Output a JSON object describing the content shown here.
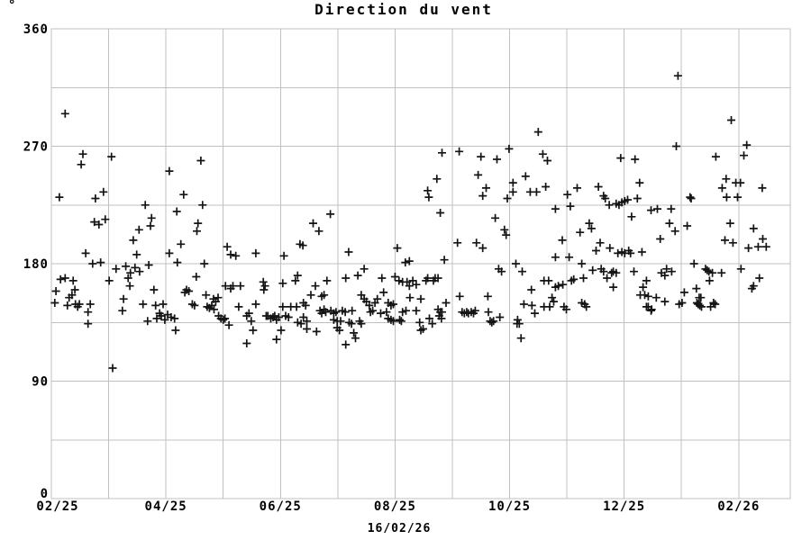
{
  "page": {
    "background": "#ffffff"
  },
  "chart_data": {
    "type": "scatter",
    "title": "Direction du vent",
    "y_unit": "°",
    "xlabel": "16/02/26",
    "marker": "plus-cross",
    "marker_color": "#141414",
    "grid_color": "#c0c0c0",
    "text_color": "#000000",
    "grid": true,
    "legend": "none",
    "ylim": [
      0,
      360
    ],
    "y_ticks": [
      0,
      90,
      180,
      270,
      360
    ],
    "y_grid_step": 45,
    "x_tick_labels": [
      "02/25",
      "04/25",
      "06/25",
      "08/25",
      "10/25",
      "12/25",
      "02/26"
    ],
    "x_tick_month_index": [
      0,
      2,
      4,
      6,
      8,
      10,
      12
    ],
    "x_grid_step_months": 1,
    "x_total_months": 12.9,
    "points_format": [
      "months_since_02_25",
      "degrees"
    ],
    "points": [
      [
        0.24,
        295
      ],
      [
        0.55,
        264
      ],
      [
        0.52,
        256
      ],
      [
        1.05,
        262
      ],
      [
        2.06,
        251
      ],
      [
        0.14,
        231
      ],
      [
        0.77,
        230
      ],
      [
        0.91,
        235
      ],
      [
        1.64,
        225
      ],
      [
        0.75,
        212
      ],
      [
        0.83,
        210
      ],
      [
        0.94,
        214
      ],
      [
        1.75,
        215
      ],
      [
        1.73,
        209
      ],
      [
        1.53,
        206
      ],
      [
        1.43,
        198
      ],
      [
        0.6,
        188
      ],
      [
        1.49,
        187
      ],
      [
        2.06,
        188
      ],
      [
        0.72,
        180
      ],
      [
        0.86,
        181
      ],
      [
        1.13,
        176
      ],
      [
        1.3,
        178
      ],
      [
        1.46,
        177
      ],
      [
        1.38,
        173
      ],
      [
        1.54,
        174
      ],
      [
        1.7,
        179
      ],
      [
        0.16,
        168
      ],
      [
        0.24,
        169
      ],
      [
        0.38,
        167
      ],
      [
        1.01,
        167
      ],
      [
        1.34,
        169
      ],
      [
        1.37,
        163
      ],
      [
        0.41,
        160
      ],
      [
        0.08,
        159
      ],
      [
        1.79,
        160
      ],
      [
        0.31,
        154
      ],
      [
        0.36,
        156
      ],
      [
        0.06,
        150
      ],
      [
        0.28,
        148
      ],
      [
        0.42,
        149
      ],
      [
        0.49,
        149
      ],
      [
        0.46,
        147
      ],
      [
        0.68,
        149
      ],
      [
        0.64,
        143
      ],
      [
        1.26,
        153
      ],
      [
        1.24,
        144
      ],
      [
        1.6,
        149
      ],
      [
        1.82,
        148
      ],
      [
        1.95,
        149
      ],
      [
        1.89,
        142
      ],
      [
        1.92,
        140
      ],
      [
        1.84,
        138
      ],
      [
        1.98,
        137
      ],
      [
        2.03,
        141
      ],
      [
        2.09,
        139
      ],
      [
        2.15,
        138
      ],
      [
        1.68,
        136
      ],
      [
        0.64,
        134
      ],
      [
        1.07,
        100
      ],
      [
        2.19,
        220
      ],
      [
        2.17,
        129
      ],
      [
        2.61,
        259
      ],
      [
        2.31,
        233
      ],
      [
        2.64,
        225
      ],
      [
        2.56,
        211
      ],
      [
        2.54,
        205
      ],
      [
        2.26,
        195
      ],
      [
        3.07,
        193
      ],
      [
        3.13,
        187
      ],
      [
        3.22,
        186
      ],
      [
        3.57,
        188
      ],
      [
        4.06,
        186
      ],
      [
        4.34,
        195
      ],
      [
        4.39,
        194
      ],
      [
        2.67,
        180
      ],
      [
        2.2,
        181
      ],
      [
        2.53,
        170
      ],
      [
        3.04,
        163
      ],
      [
        3.17,
        163
      ],
      [
        3.13,
        161
      ],
      [
        3.3,
        163
      ],
      [
        3.7,
        166
      ],
      [
        3.73,
        163
      ],
      [
        3.71,
        160
      ],
      [
        4.04,
        165
      ],
      [
        4.26,
        167
      ],
      [
        4.3,
        171
      ],
      [
        2.36,
        160
      ],
      [
        2.4,
        159
      ],
      [
        2.33,
        158
      ],
      [
        2.7,
        156
      ],
      [
        2.83,
        153
      ],
      [
        2.87,
        151
      ],
      [
        2.91,
        154
      ],
      [
        2.46,
        149
      ],
      [
        2.5,
        148
      ],
      [
        2.72,
        147
      ],
      [
        2.76,
        146
      ],
      [
        2.8,
        148
      ],
      [
        2.84,
        145
      ],
      [
        3.27,
        147
      ],
      [
        3.57,
        149
      ],
      [
        4.04,
        147
      ],
      [
        4.18,
        147
      ],
      [
        4.28,
        147
      ],
      [
        2.92,
        140
      ],
      [
        2.96,
        138
      ],
      [
        3.0,
        137
      ],
      [
        3.03,
        138
      ],
      [
        3.41,
        140
      ],
      [
        3.45,
        142
      ],
      [
        3.49,
        136
      ],
      [
        3.75,
        140
      ],
      [
        3.78,
        140
      ],
      [
        3.83,
        138
      ],
      [
        3.87,
        139
      ],
      [
        3.9,
        140
      ],
      [
        3.93,
        137
      ],
      [
        3.97,
        139
      ],
      [
        4.09,
        140
      ],
      [
        4.14,
        139
      ],
      [
        4.3,
        135
      ],
      [
        4.36,
        134
      ],
      [
        3.1,
        133
      ],
      [
        3.52,
        129
      ],
      [
        4.01,
        129
      ],
      [
        3.93,
        122
      ],
      [
        3.41,
        119
      ],
      [
        6.57,
        236
      ],
      [
        6.59,
        231
      ],
      [
        4.87,
        218
      ],
      [
        4.57,
        211
      ],
      [
        4.67,
        205
      ],
      [
        5.19,
        189
      ],
      [
        6.04,
        192
      ],
      [
        6.18,
        181
      ],
      [
        6.25,
        182
      ],
      [
        5.46,
        176
      ],
      [
        5.14,
        169
      ],
      [
        5.35,
        171
      ],
      [
        5.77,
        169
      ],
      [
        6.0,
        170
      ],
      [
        6.07,
        167
      ],
      [
        6.13,
        166
      ],
      [
        6.21,
        166
      ],
      [
        6.25,
        163
      ],
      [
        6.31,
        167
      ],
      [
        6.37,
        164
      ],
      [
        6.54,
        167
      ],
      [
        6.57,
        169
      ],
      [
        4.81,
        167
      ],
      [
        4.61,
        163
      ],
      [
        4.53,
        156
      ],
      [
        4.72,
        155
      ],
      [
        4.76,
        156
      ],
      [
        4.4,
        150
      ],
      [
        4.44,
        148
      ],
      [
        5.41,
        156
      ],
      [
        5.46,
        153
      ],
      [
        5.5,
        151
      ],
      [
        5.55,
        148
      ],
      [
        5.69,
        153
      ],
      [
        5.65,
        150
      ],
      [
        5.8,
        158
      ],
      [
        5.88,
        150
      ],
      [
        5.93,
        148
      ],
      [
        5.97,
        149
      ],
      [
        6.26,
        154
      ],
      [
        6.45,
        153
      ],
      [
        6.13,
        143
      ],
      [
        6.19,
        144
      ],
      [
        6.37,
        144
      ],
      [
        4.69,
        144
      ],
      [
        4.76,
        145
      ],
      [
        4.79,
        143
      ],
      [
        4.72,
        142
      ],
      [
        4.88,
        144
      ],
      [
        4.93,
        142
      ],
      [
        4.97,
        143
      ],
      [
        5.08,
        144
      ],
      [
        5.13,
        143
      ],
      [
        5.25,
        144
      ],
      [
        5.57,
        143
      ],
      [
        5.61,
        144
      ],
      [
        5.75,
        142
      ],
      [
        5.85,
        143
      ],
      [
        4.4,
        139
      ],
      [
        4.46,
        136
      ],
      [
        4.93,
        137
      ],
      [
        4.99,
        136
      ],
      [
        5.05,
        136
      ],
      [
        5.2,
        135
      ],
      [
        5.24,
        134
      ],
      [
        5.38,
        136
      ],
      [
        5.41,
        134
      ],
      [
        5.88,
        138
      ],
      [
        5.93,
        137
      ],
      [
        5.97,
        136
      ],
      [
        6.08,
        137
      ],
      [
        6.11,
        136
      ],
      [
        6.43,
        135
      ],
      [
        6.45,
        129
      ],
      [
        6.49,
        130
      ],
      [
        4.46,
        130
      ],
      [
        4.63,
        128
      ],
      [
        4.99,
        131
      ],
      [
        5.03,
        129
      ],
      [
        5.28,
        127
      ],
      [
        5.31,
        123
      ],
      [
        5.14,
        118
      ],
      [
        8.5,
        281
      ],
      [
        6.82,
        265
      ],
      [
        7.12,
        266
      ],
      [
        7.99,
        268
      ],
      [
        7.5,
        262
      ],
      [
        7.78,
        260
      ],
      [
        8.58,
        264
      ],
      [
        8.66,
        259
      ],
      [
        7.45,
        248
      ],
      [
        6.73,
        245
      ],
      [
        8.28,
        247
      ],
      [
        7.59,
        238
      ],
      [
        7.53,
        232
      ],
      [
        8.06,
        242
      ],
      [
        8.06,
        235
      ],
      [
        7.96,
        230
      ],
      [
        8.63,
        239
      ],
      [
        8.36,
        235
      ],
      [
        8.47,
        235
      ],
      [
        6.79,
        219
      ],
      [
        7.75,
        215
      ],
      [
        7.91,
        206
      ],
      [
        7.94,
        202
      ],
      [
        7.09,
        196
      ],
      [
        7.42,
        196
      ],
      [
        7.53,
        192
      ],
      [
        6.86,
        183
      ],
      [
        7.81,
        176
      ],
      [
        7.86,
        174
      ],
      [
        8.11,
        180
      ],
      [
        8.22,
        174
      ],
      [
        6.7,
        169
      ],
      [
        6.75,
        169
      ],
      [
        6.67,
        167
      ],
      [
        8.6,
        167
      ],
      [
        8.68,
        167
      ],
      [
        8.38,
        160
      ],
      [
        7.13,
        155
      ],
      [
        7.62,
        155
      ],
      [
        6.89,
        150
      ],
      [
        8.25,
        149
      ],
      [
        8.39,
        148
      ],
      [
        8.6,
        147
      ],
      [
        8.74,
        154
      ],
      [
        8.77,
        151
      ],
      [
        8.7,
        147
      ],
      [
        8.44,
        142
      ],
      [
        6.75,
        145
      ],
      [
        6.79,
        143
      ],
      [
        6.82,
        143
      ],
      [
        6.77,
        140
      ],
      [
        6.81,
        138
      ],
      [
        7.17,
        143
      ],
      [
        7.21,
        142
      ],
      [
        7.25,
        143
      ],
      [
        7.28,
        142
      ],
      [
        7.33,
        143
      ],
      [
        7.37,
        142
      ],
      [
        7.4,
        144
      ],
      [
        7.63,
        143
      ],
      [
        7.83,
        139
      ],
      [
        7.66,
        136
      ],
      [
        7.69,
        135
      ],
      [
        7.72,
        136
      ],
      [
        6.6,
        138
      ],
      [
        6.65,
        134
      ],
      [
        8.14,
        137
      ],
      [
        8.17,
        134
      ],
      [
        8.13,
        134
      ],
      [
        8.2,
        123
      ],
      [
        10.94,
        324
      ],
      [
        10.91,
        270
      ],
      [
        9.94,
        261
      ],
      [
        10.19,
        260
      ],
      [
        10.27,
        242
      ],
      [
        9.18,
        238
      ],
      [
        9.55,
        239
      ],
      [
        9.01,
        233
      ],
      [
        9.64,
        232
      ],
      [
        9.67,
        230
      ],
      [
        10.06,
        229
      ],
      [
        10.01,
        228
      ],
      [
        9.96,
        227
      ],
      [
        9.91,
        225
      ],
      [
        9.86,
        226
      ],
      [
        10.23,
        230
      ],
      [
        9.74,
        225
      ],
      [
        10.13,
        216
      ],
      [
        8.8,
        222
      ],
      [
        9.06,
        224
      ],
      [
        10.47,
        221
      ],
      [
        10.58,
        222
      ],
      [
        10.82,
        222
      ],
      [
        9.39,
        211
      ],
      [
        9.43,
        207
      ],
      [
        10.79,
        211
      ],
      [
        9.23,
        204
      ],
      [
        10.89,
        205
      ],
      [
        8.92,
        198
      ],
      [
        10.63,
        199
      ],
      [
        9.58,
        196
      ],
      [
        9.51,
        190
      ],
      [
        9.75,
        192
      ],
      [
        9.89,
        188
      ],
      [
        9.96,
        189
      ],
      [
        10.01,
        188
      ],
      [
        10.08,
        190
      ],
      [
        10.11,
        188
      ],
      [
        10.31,
        189
      ],
      [
        8.8,
        185
      ],
      [
        9.04,
        185
      ],
      [
        9.26,
        180
      ],
      [
        9.45,
        175
      ],
      [
        9.6,
        176
      ],
      [
        9.64,
        174
      ],
      [
        9.78,
        173
      ],
      [
        9.81,
        174
      ],
      [
        9.86,
        173
      ],
      [
        10.17,
        174
      ],
      [
        10.74,
        176
      ],
      [
        10.65,
        173
      ],
      [
        10.71,
        171
      ],
      [
        10.83,
        174
      ],
      [
        9.29,
        169
      ],
      [
        9.12,
        168
      ],
      [
        9.08,
        167
      ],
      [
        9.7,
        169
      ],
      [
        10.39,
        167
      ],
      [
        8.85,
        163
      ],
      [
        8.93,
        164
      ],
      [
        8.8,
        162
      ],
      [
        9.81,
        162
      ],
      [
        10.33,
        162
      ],
      [
        10.36,
        156
      ],
      [
        10.28,
        156
      ],
      [
        10.42,
        155
      ],
      [
        10.56,
        154
      ],
      [
        10.71,
        151
      ],
      [
        9.26,
        150
      ],
      [
        9.31,
        149
      ],
      [
        9.34,
        147
      ],
      [
        8.99,
        145
      ],
      [
        8.95,
        147
      ],
      [
        10.42,
        147
      ],
      [
        10.48,
        145
      ],
      [
        10.39,
        147
      ],
      [
        10.47,
        144
      ],
      [
        10.96,
        149
      ],
      [
        11.87,
        290
      ],
      [
        12.14,
        271
      ],
      [
        12.09,
        263
      ],
      [
        11.6,
        262
      ],
      [
        11.78,
        245
      ],
      [
        11.71,
        238
      ],
      [
        11.95,
        242
      ],
      [
        12.03,
        242
      ],
      [
        12.41,
        238
      ],
      [
        11.15,
        231
      ],
      [
        11.17,
        230
      ],
      [
        11.79,
        231
      ],
      [
        11.98,
        231
      ],
      [
        11.1,
        209
      ],
      [
        11.85,
        211
      ],
      [
        12.26,
        207
      ],
      [
        11.76,
        198
      ],
      [
        11.9,
        196
      ],
      [
        12.42,
        199
      ],
      [
        12.17,
        192
      ],
      [
        12.34,
        193
      ],
      [
        12.48,
        193
      ],
      [
        11.22,
        180
      ],
      [
        11.42,
        176
      ],
      [
        11.45,
        175
      ],
      [
        11.48,
        174
      ],
      [
        11.54,
        173
      ],
      [
        11.7,
        173
      ],
      [
        12.04,
        176
      ],
      [
        11.49,
        167
      ],
      [
        12.36,
        169
      ],
      [
        12.26,
        163
      ],
      [
        12.23,
        161
      ],
      [
        11.26,
        161
      ],
      [
        11.05,
        158
      ],
      [
        11.31,
        154
      ],
      [
        11.34,
        154
      ],
      [
        11.01,
        150
      ],
      [
        11.27,
        150
      ],
      [
        11.29,
        149
      ],
      [
        11.32,
        148
      ],
      [
        11.35,
        147
      ],
      [
        11.51,
        147
      ],
      [
        11.56,
        150
      ],
      [
        11.59,
        149
      ]
    ]
  }
}
